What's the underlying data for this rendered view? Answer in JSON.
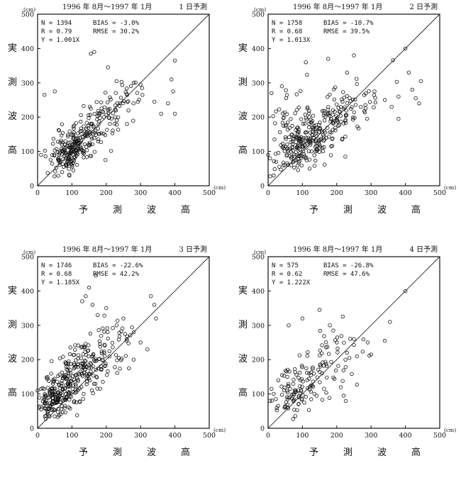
{
  "common": {
    "period": "1996 年  8月～1997 年  1月",
    "unit": "(cm)",
    "xlabel": [
      "予",
      "測",
      "波",
      "高"
    ],
    "ylabel": [
      "実",
      "測",
      "波",
      "高"
    ],
    "x_ticks": [
      "0",
      "100",
      "200",
      "300",
      "400",
      "500"
    ],
    "y_ticks": [
      "0",
      "100",
      "200",
      "300",
      "400",
      "500"
    ]
  },
  "chart_data": [
    {
      "type": "scatter",
      "title": "1 日予測",
      "xlabel": "予 測 波 高",
      "ylabel": "実 測 波 高",
      "xlim": [
        0,
        500
      ],
      "ylim": [
        0,
        500
      ],
      "stats": {
        "n": "N = 1394",
        "r": "R = 0.79",
        "y": "Y = 1.001X",
        "bias": "BIAS =  -3.0%",
        "rmse": "RMSE =  30.2%"
      },
      "clusters": [
        {
          "n": 120,
          "cx": 85,
          "cy": 95,
          "sx": 25,
          "sy": 30
        },
        {
          "n": 90,
          "cx": 130,
          "cy": 140,
          "sx": 35,
          "sy": 35
        },
        {
          "n": 55,
          "cx": 190,
          "cy": 200,
          "sx": 35,
          "sy": 35
        },
        {
          "n": 25,
          "cx": 250,
          "cy": 250,
          "sx": 30,
          "sy": 30
        },
        {
          "n": 20,
          "cx": 150,
          "cy": 120,
          "sx": 40,
          "sy": 25
        }
      ],
      "extra_points": [
        [
          20,
          265
        ],
        [
          50,
          275
        ],
        [
          155,
          385
        ],
        [
          165,
          390
        ],
        [
          205,
          345
        ],
        [
          230,
          305
        ],
        [
          280,
          300
        ],
        [
          300,
          295
        ],
        [
          340,
          245
        ],
        [
          360,
          210
        ],
        [
          380,
          240
        ],
        [
          390,
          310
        ],
        [
          395,
          275
        ],
        [
          400,
          365
        ],
        [
          400,
          210
        ],
        [
          10,
          90
        ]
      ]
    },
    {
      "type": "scatter",
      "title": "2 日予測",
      "xlabel": "予 測 波 高",
      "ylabel": "実 測 波 高",
      "xlim": [
        0,
        500
      ],
      "ylim": [
        0,
        500
      ],
      "stats": {
        "n": "N = 1758",
        "r": "R = 0.68",
        "y": "Y = 1.013X",
        "bias": "BIAS = -10.7%",
        "rmse": "RMSE =  39.5%"
      },
      "clusters": [
        {
          "n": 130,
          "cx": 80,
          "cy": 110,
          "sx": 30,
          "sy": 40
        },
        {
          "n": 100,
          "cx": 140,
          "cy": 150,
          "sx": 45,
          "sy": 45
        },
        {
          "n": 60,
          "cx": 200,
          "cy": 200,
          "sx": 45,
          "sy": 45
        },
        {
          "n": 25,
          "cx": 270,
          "cy": 240,
          "sx": 40,
          "sy": 40
        },
        {
          "n": 25,
          "cx": 60,
          "cy": 210,
          "sx": 30,
          "sy": 35
        }
      ],
      "extra_points": [
        [
          10,
          270
        ],
        [
          40,
          290
        ],
        [
          110,
          360
        ],
        [
          175,
          370
        ],
        [
          230,
          330
        ],
        [
          250,
          380
        ],
        [
          310,
          275
        ],
        [
          340,
          250
        ],
        [
          360,
          230
        ],
        [
          380,
          260
        ],
        [
          400,
          400
        ],
        [
          410,
          330
        ],
        [
          420,
          280
        ],
        [
          430,
          255
        ],
        [
          445,
          305
        ],
        [
          440,
          240
        ],
        [
          380,
          195
        ],
        [
          0,
          90
        ]
      ]
    },
    {
      "type": "scatter",
      "title": "3 日予測",
      "xlabel": "予 測 波 高",
      "ylabel": "実 測 波 高",
      "xlim": [
        0,
        500
      ],
      "ylim": [
        0,
        500
      ],
      "stats": {
        "n": "N = 1746",
        "r": "R = 0.68",
        "y": "Y = 1.185X",
        "bias": "BIAS = -22.6%",
        "rmse": "RMSE =  42.2%"
      },
      "clusters": [
        {
          "n": 150,
          "cx": 60,
          "cy": 95,
          "sx": 28,
          "sy": 35
        },
        {
          "n": 110,
          "cx": 110,
          "cy": 150,
          "sx": 35,
          "sy": 50
        },
        {
          "n": 70,
          "cx": 165,
          "cy": 200,
          "sx": 35,
          "sy": 45
        },
        {
          "n": 30,
          "cx": 230,
          "cy": 230,
          "sx": 35,
          "sy": 40
        },
        {
          "n": 20,
          "cx": 20,
          "cy": 70,
          "sx": 15,
          "sy": 25
        }
      ],
      "extra_points": [
        [
          130,
          370
        ],
        [
          140,
          385
        ],
        [
          150,
          410
        ],
        [
          160,
          360
        ],
        [
          170,
          445
        ],
        [
          175,
          330
        ],
        [
          200,
          350
        ],
        [
          230,
          300
        ],
        [
          250,
          320
        ],
        [
          260,
          260
        ],
        [
          280,
          280
        ],
        [
          300,
          250
        ],
        [
          320,
          230
        ],
        [
          340,
          360
        ],
        [
          345,
          320
        ],
        [
          330,
          385
        ],
        [
          280,
          200
        ],
        [
          0,
          110
        ],
        [
          5,
          60
        ]
      ]
    },
    {
      "type": "scatter",
      "title": "4 日予測",
      "xlabel": "予 測 波 高",
      "ylabel": "実 測 波 高",
      "xlim": [
        0,
        500
      ],
      "ylim": [
        0,
        500
      ],
      "stats": {
        "n": "N = 575",
        "r": "R = 0.62",
        "y": "Y = 1.222X",
        "bias": "BIAS = -26.8%",
        "rmse": "RMSE =  47.6%"
      },
      "clusters": [
        {
          "n": 70,
          "cx": 70,
          "cy": 100,
          "sx": 30,
          "sy": 35
        },
        {
          "n": 50,
          "cx": 120,
          "cy": 150,
          "sx": 40,
          "sy": 50
        },
        {
          "n": 30,
          "cx": 180,
          "cy": 200,
          "sx": 40,
          "sy": 45
        },
        {
          "n": 10,
          "cx": 240,
          "cy": 200,
          "sx": 35,
          "sy": 40
        }
      ],
      "extra_points": [
        [
          60,
          300
        ],
        [
          100,
          320
        ],
        [
          150,
          345
        ],
        [
          180,
          300
        ],
        [
          190,
          285
        ],
        [
          200,
          250
        ],
        [
          230,
          220
        ],
        [
          250,
          260
        ],
        [
          290,
          250
        ],
        [
          300,
          215
        ],
        [
          340,
          255
        ],
        [
          355,
          310
        ],
        [
          400,
          400
        ],
        [
          220,
          95
        ],
        [
          10,
          115
        ],
        [
          5,
          80
        ]
      ]
    }
  ]
}
